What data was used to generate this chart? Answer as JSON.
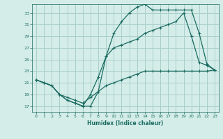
{
  "xlabel": "Humidex (Indice chaleur)",
  "bg_color": "#d4ede9",
  "grid_color": "#aacfcb",
  "line_color": "#1a6b60",
  "xlim": [
    -0.5,
    23.5
  ],
  "ylim": [
    16.0,
    34.5
  ],
  "xticks": [
    0,
    1,
    2,
    3,
    4,
    5,
    6,
    7,
    8,
    9,
    10,
    11,
    12,
    13,
    14,
    15,
    16,
    17,
    18,
    19,
    20,
    21,
    22,
    23
  ],
  "yticks": [
    17,
    19,
    21,
    23,
    25,
    27,
    29,
    31,
    33
  ],
  "line1_x": [
    0,
    1,
    2,
    3,
    4,
    5,
    6,
    7,
    8,
    9,
    10,
    11,
    12,
    13,
    14,
    15,
    16,
    17,
    18,
    19,
    20,
    21,
    22,
    23
  ],
  "line1_y": [
    21.5,
    21.0,
    20.5,
    19.0,
    18.0,
    17.5,
    17.0,
    17.0,
    19.5,
    25.5,
    29.5,
    31.5,
    33.0,
    34.0,
    34.5,
    33.5,
    33.5,
    33.5,
    33.5,
    33.5,
    33.5,
    29.5,
    24.2,
    23.2
  ],
  "line2_x": [
    0,
    1,
    2,
    3,
    4,
    5,
    6,
    7,
    8,
    9,
    10,
    11,
    12,
    13,
    14,
    15,
    16,
    17,
    18,
    19,
    20,
    21,
    22,
    23
  ],
  "line2_y": [
    21.5,
    21.0,
    20.5,
    19.0,
    18.0,
    17.5,
    17.0,
    19.0,
    22.0,
    25.5,
    27.0,
    27.5,
    28.0,
    28.5,
    29.5,
    30.0,
    30.5,
    31.0,
    31.5,
    33.0,
    29.0,
    24.5,
    24.0,
    23.2
  ],
  "line3_x": [
    0,
    1,
    2,
    3,
    4,
    5,
    6,
    7,
    8,
    9,
    10,
    11,
    12,
    13,
    14,
    15,
    16,
    17,
    18,
    19,
    20,
    21,
    22,
    23
  ],
  "line3_y": [
    21.5,
    21.0,
    20.5,
    19.0,
    18.5,
    18.0,
    17.5,
    18.5,
    19.5,
    20.5,
    21.0,
    21.5,
    22.0,
    22.5,
    23.0,
    23.0,
    23.0,
    23.0,
    23.0,
    23.0,
    23.0,
    23.0,
    23.0,
    23.2
  ]
}
